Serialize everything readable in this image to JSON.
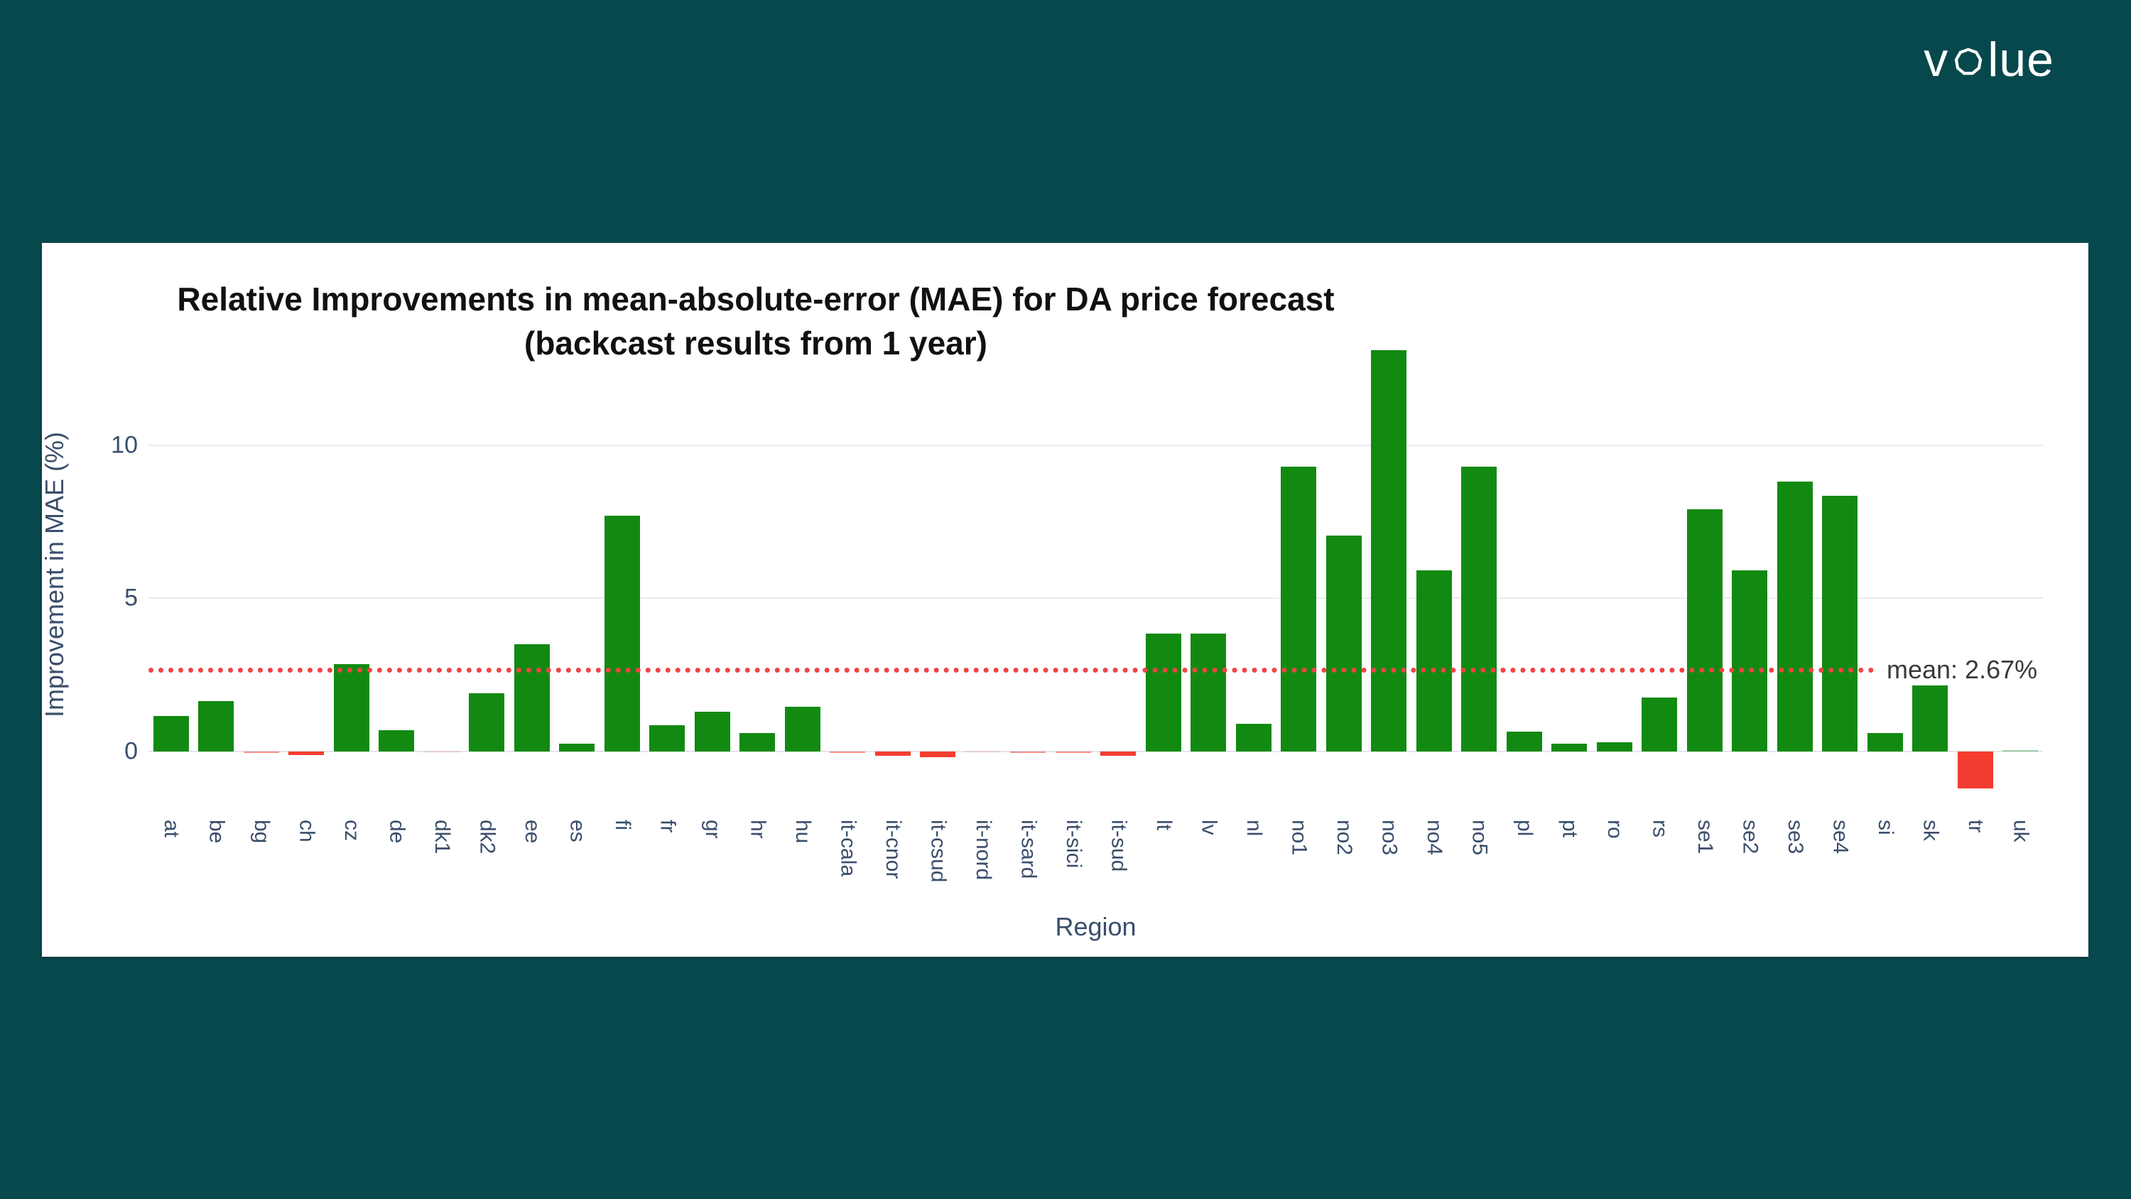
{
  "page": {
    "background_color": "#07484d",
    "card_color": "#ffffff"
  },
  "logo": {
    "name": "volue",
    "prefix": "v",
    "suffix": "lue",
    "color": "#ffffff"
  },
  "chart_data": {
    "type": "bar",
    "title_line1": "Relative Improvements in mean-absolute-error (MAE) for DA price forecast",
    "title_line2": "(backcast results from 1 year)",
    "xlabel": "Region",
    "ylabel": "Improvement in MAE (%)",
    "categories": [
      "at",
      "be",
      "bg",
      "ch",
      "cz",
      "de",
      "dk1",
      "dk2",
      "ee",
      "es",
      "fi",
      "fr",
      "gr",
      "hr",
      "hu",
      "it-cala",
      "it-cnor",
      "it-csud",
      "it-nord",
      "it-sard",
      "it-sici",
      "it-sud",
      "lt",
      "lv",
      "nl",
      "no1",
      "no2",
      "no3",
      "no4",
      "no5",
      "pl",
      "pt",
      "ro",
      "rs",
      "se1",
      "se2",
      "se3",
      "se4",
      "si",
      "sk",
      "tr",
      "uk"
    ],
    "values": [
      1.15,
      1.65,
      -0.06,
      -0.12,
      2.85,
      0.7,
      -0.02,
      1.9,
      3.5,
      0.25,
      7.7,
      0.85,
      1.3,
      0.6,
      1.45,
      -0.05,
      -0.15,
      -0.2,
      -0.02,
      -0.05,
      -0.06,
      -0.15,
      3.85,
      3.85,
      0.9,
      9.3,
      7.05,
      13.1,
      5.9,
      9.3,
      0.65,
      0.25,
      0.3,
      1.75,
      7.9,
      5.9,
      8.8,
      8.35,
      0.6,
      2.15,
      -1.2,
      0.02
    ],
    "yticks": [
      0,
      5,
      10
    ],
    "ylim": [
      -2,
      13.4
    ],
    "grid": "on",
    "mean_line": {
      "value": 2.67,
      "label": "mean: 2.67%"
    },
    "colors": {
      "positive_bar": "#128a12",
      "negative_bar": "#f53c30",
      "mean_line": "#ef4444",
      "gridline": "#e8ecf4",
      "zeroline": "#e4e6e9",
      "axis_text": "#3b4e6b",
      "title_text": "#111111"
    }
  }
}
